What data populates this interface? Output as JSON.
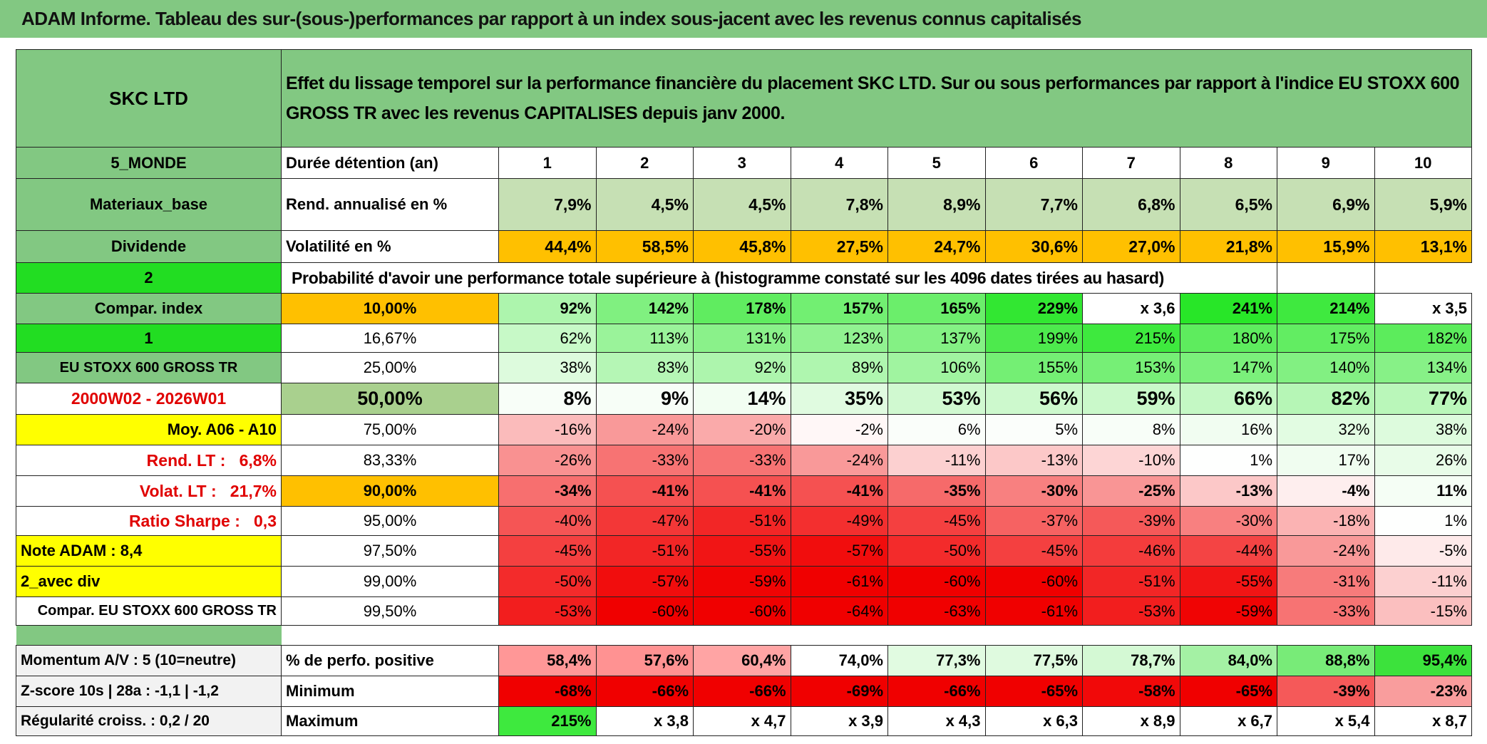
{
  "header": {
    "title": "ADAM Informe. Tableau des sur-(sous-)performances par rapport à un index sous-jacent avec les revenus connus capitalisés"
  },
  "table": {
    "corner": "SKC LTD",
    "description": "Effet du lissage temporel sur la performance financière du placement SKC LTD. Sur ou sous performances par rapport à l'indice EU STOXX 600 GROSS TR avec les revenus CAPITALISES depuis janv 2000.",
    "rows": [
      {
        "label": "5_MONDE",
        "name": "Durée détention (an)",
        "cells": [
          "1",
          "2",
          "3",
          "4",
          "5",
          "6",
          "7",
          "8",
          "9",
          "10"
        ]
      },
      {
        "label": "Materiaux_base",
        "name": "Rend. annualisé en %",
        "cells": [
          "7,9%",
          "4,5%",
          "4,5%",
          "7,8%",
          "8,9%",
          "7,7%",
          "6,8%",
          "6,5%",
          "6,9%",
          "5,9%"
        ]
      },
      {
        "label": "Dividende",
        "name": "Volatilité en %",
        "cells": [
          "44,4%",
          "58,5%",
          "45,8%",
          "27,5%",
          "24,7%",
          "30,6%",
          "27,0%",
          "21,8%",
          "15,9%",
          "13,1%"
        ]
      },
      {
        "label": "2",
        "name": "Probabilité d'avoir une performance totale supérieure à (histogramme constaté sur les 4096 dates tirées au hasard)",
        "cells": []
      },
      {
        "label": "Compar. index",
        "name": "10,00%",
        "cells": [
          "92%",
          "142%",
          "178%",
          "157%",
          "165%",
          "229%",
          "x 3,6",
          "241%",
          "214%",
          "x 3,5"
        ]
      },
      {
        "label": "1",
        "name": "16,67%",
        "cells": [
          "62%",
          "113%",
          "131%",
          "123%",
          "137%",
          "199%",
          "215%",
          "180%",
          "175%",
          "182%"
        ]
      },
      {
        "label": "EU STOXX 600 GROSS TR",
        "name": "25,00%",
        "cells": [
          "38%",
          "83%",
          "92%",
          "89%",
          "106%",
          "155%",
          "153%",
          "147%",
          "140%",
          "134%"
        ]
      },
      {
        "label": "2000W02 - 2026W01",
        "name": "50,00%",
        "cells": [
          "8%",
          "9%",
          "14%",
          "35%",
          "53%",
          "56%",
          "59%",
          "66%",
          "82%",
          "77%"
        ]
      },
      {
        "label": "Moy. A06 - A10",
        "name": "75,00%",
        "cells": [
          "-16%",
          "-24%",
          "-20%",
          "-2%",
          "6%",
          "5%",
          "8%",
          "16%",
          "32%",
          "38%"
        ]
      },
      {
        "label": "Rend. LT :   6,8%",
        "name": "83,33%",
        "cells": [
          "-26%",
          "-33%",
          "-33%",
          "-24%",
          "-11%",
          "-13%",
          "-10%",
          "1%",
          "17%",
          "26%"
        ]
      },
      {
        "label": "Volat. LT :   21,7%",
        "name": "90,00%",
        "cells": [
          "-34%",
          "-41%",
          "-41%",
          "-41%",
          "-35%",
          "-30%",
          "-25%",
          "-13%",
          "-4%",
          "11%"
        ]
      },
      {
        "label": "Ratio Sharpe :   0,3",
        "name": "95,00%",
        "cells": [
          "-40%",
          "-47%",
          "-51%",
          "-49%",
          "-45%",
          "-37%",
          "-39%",
          "-30%",
          "-18%",
          "1%"
        ]
      },
      {
        "label": "Note ADAM : 8,4",
        "name": "97,50%",
        "cells": [
          "-45%",
          "-51%",
          "-55%",
          "-57%",
          "-50%",
          "-45%",
          "-46%",
          "-44%",
          "-24%",
          "-5%"
        ]
      },
      {
        "label": "2_avec div",
        "name": "99,00%",
        "cells": [
          "-50%",
          "-57%",
          "-59%",
          "-61%",
          "-60%",
          "-60%",
          "-51%",
          "-55%",
          "-31%",
          "-11%"
        ]
      },
      {
        "label": "Compar. EU STOXX 600 GROSS TR",
        "name": "99,50%",
        "cells": [
          "-53%",
          "-60%",
          "-60%",
          "-64%",
          "-63%",
          "-61%",
          "-53%",
          "-59%",
          "-33%",
          "-15%"
        ]
      },
      {
        "label": "Momentum A/V : 5 (10=neutre)",
        "name": "% de perfo. positive",
        "cells": [
          "58,4%",
          "57,6%",
          "60,4%",
          "74,0%",
          "77,3%",
          "77,5%",
          "78,7%",
          "84,0%",
          "88,8%",
          "95,4%"
        ]
      },
      {
        "label": "Z-score 10s | 28a : -1,1 | -1,2",
        "name": "Minimum",
        "cells": [
          "-68%",
          "-66%",
          "-66%",
          "-69%",
          "-66%",
          "-65%",
          "-58%",
          "-65%",
          "-39%",
          "-23%"
        ]
      },
      {
        "label": "Régularité croiss. : 0,2 / 20",
        "name": "Maximum",
        "cells": [
          "215%",
          "x 3,8",
          "x 4,7",
          "x 3,9",
          "x 4,3",
          "x 6,3",
          "x 8,9",
          "x 6,7",
          "x 5,4",
          "x 8,7"
        ]
      }
    ]
  }
}
